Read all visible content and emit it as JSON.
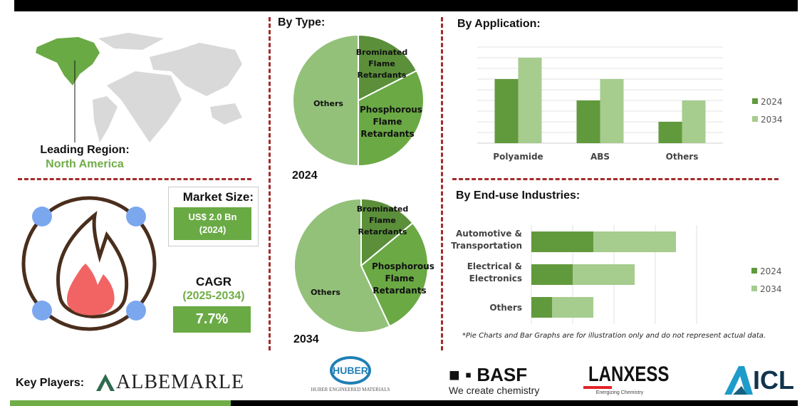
{
  "colors": {
    "dark_green": "#619a3c",
    "light_green": "#a6cc8e",
    "mid_green": "#6aaa45",
    "pie_brominated": "#5b8f3a",
    "pie_phosphorous": "#6aa944",
    "pie_others": "#93c17a",
    "divider": "#a52a2a"
  },
  "region": {
    "label": "Leading Region:",
    "value": "North America"
  },
  "market": {
    "label": "Market Size:",
    "value": "US$ 2.0 Bn",
    "year": "(2024)"
  },
  "cagr": {
    "label": "CAGR",
    "period": "(2025-2034)",
    "value": "7.7%"
  },
  "icon": "flame-in-circle-icon",
  "chart_data": [
    {
      "type": "pie",
      "title": "By Type:",
      "caption": "2024",
      "slices": [
        {
          "label": "Brominated Flame Retardants",
          "value": 17.5
        },
        {
          "label": "Phosphorous Flame Retardants",
          "value": 32.5
        },
        {
          "label": "Others",
          "value": 50
        }
      ]
    },
    {
      "type": "pie",
      "caption": "2034",
      "slices": [
        {
          "label": "Brominated Flame Retardants",
          "value": 14
        },
        {
          "label": "Phosphorous Flame Retardants",
          "value": 29
        },
        {
          "label": "Others",
          "value": 57
        }
      ]
    },
    {
      "type": "bar",
      "title": "By Application:",
      "categories": [
        "Polyamide",
        "ABS",
        "Others"
      ],
      "series": [
        {
          "name": "2024",
          "values": [
            6,
            4,
            2
          ]
        },
        {
          "name": "2034",
          "values": [
            8,
            6,
            4
          ]
        }
      ],
      "ylim": [
        0,
        9
      ],
      "grid": true,
      "legend": "right"
    },
    {
      "type": "bar",
      "orientation": "horizontal",
      "stacked": true,
      "title": "By End-use Industries:",
      "categories": [
        "Automotive & Transportation",
        "Electrical & Electronics",
        "Others"
      ],
      "series": [
        {
          "name": "2024",
          "values": [
            1.5,
            1,
            0.5
          ]
        },
        {
          "name": "2034",
          "values": [
            2,
            1.5,
            1
          ]
        }
      ],
      "xlim": [
        0,
        4
      ],
      "grid": true,
      "legend": "right"
    }
  ],
  "footnote": "*Pie Charts and Bar Graphs are for illustration only and do not represent actual data.",
  "key_players": {
    "label": "Key Players:",
    "logos": [
      "ALBEMARLE",
      "HUBER",
      "HUBER ENGINEERED MATERIALS",
      "BASF",
      "We create chemistry",
      "LANXESS",
      "Energizing Chemistry",
      "ICL"
    ]
  }
}
